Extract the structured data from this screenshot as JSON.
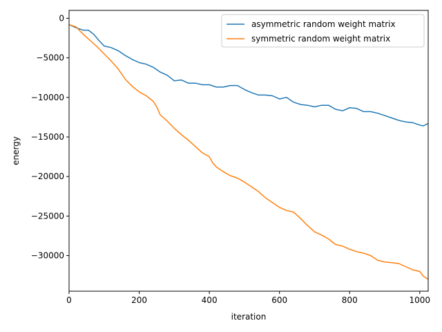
{
  "chart_data": {
    "type": "line",
    "title": "",
    "xlabel": "iteration",
    "ylabel": "energy",
    "xlim": [
      0,
      1024
    ],
    "ylim": [
      -34500,
      1000
    ],
    "x_ticks": [
      0,
      200,
      400,
      600,
      800,
      1000
    ],
    "x_tick_labels": [
      "0",
      "200",
      "400",
      "600",
      "800",
      "1000"
    ],
    "y_ticks": [
      0,
      -5000,
      -10000,
      -15000,
      -20000,
      -25000,
      -30000
    ],
    "y_tick_labels": [
      "0",
      "−5000",
      "−10000",
      "−15000",
      "−20000",
      "−25000",
      "−30000"
    ],
    "grid": false,
    "legend_position": "upper right",
    "series": [
      {
        "name": "asymmetric random weight matrix",
        "color": "#1f77b4",
        "points": [
          [
            0,
            -800
          ],
          [
            20,
            -1200
          ],
          [
            40,
            -1500
          ],
          [
            55,
            -1500
          ],
          [
            70,
            -2000
          ],
          [
            85,
            -2800
          ],
          [
            100,
            -3500
          ],
          [
            120,
            -3700
          ],
          [
            140,
            -4100
          ],
          [
            160,
            -4700
          ],
          [
            180,
            -5200
          ],
          [
            200,
            -5600
          ],
          [
            220,
            -5800
          ],
          [
            240,
            -6200
          ],
          [
            260,
            -6800
          ],
          [
            280,
            -7200
          ],
          [
            300,
            -7900
          ],
          [
            320,
            -7800
          ],
          [
            340,
            -8200
          ],
          [
            360,
            -8200
          ],
          [
            380,
            -8400
          ],
          [
            400,
            -8400
          ],
          [
            420,
            -8700
          ],
          [
            440,
            -8700
          ],
          [
            460,
            -8500
          ],
          [
            480,
            -8500
          ],
          [
            500,
            -9000
          ],
          [
            520,
            -9400
          ],
          [
            540,
            -9700
          ],
          [
            560,
            -9700
          ],
          [
            580,
            -9800
          ],
          [
            600,
            -10200
          ],
          [
            620,
            -10000
          ],
          [
            640,
            -10600
          ],
          [
            660,
            -10900
          ],
          [
            680,
            -11000
          ],
          [
            700,
            -11200
          ],
          [
            720,
            -11000
          ],
          [
            740,
            -11000
          ],
          [
            760,
            -11500
          ],
          [
            780,
            -11700
          ],
          [
            800,
            -11300
          ],
          [
            820,
            -11400
          ],
          [
            840,
            -11800
          ],
          [
            860,
            -11800
          ],
          [
            880,
            -12000
          ],
          [
            900,
            -12300
          ],
          [
            920,
            -12600
          ],
          [
            940,
            -12900
          ],
          [
            960,
            -13100
          ],
          [
            980,
            -13200
          ],
          [
            1000,
            -13500
          ],
          [
            1010,
            -13600
          ],
          [
            1024,
            -13300
          ]
        ]
      },
      {
        "name": "symmetric random weight matrix",
        "color": "#ff7f0e",
        "points": [
          [
            0,
            -800
          ],
          [
            20,
            -1100
          ],
          [
            40,
            -2000
          ],
          [
            60,
            -2800
          ],
          [
            80,
            -3600
          ],
          [
            100,
            -4500
          ],
          [
            120,
            -5400
          ],
          [
            140,
            -6400
          ],
          [
            160,
            -7700
          ],
          [
            180,
            -8600
          ],
          [
            200,
            -9300
          ],
          [
            220,
            -9800
          ],
          [
            240,
            -10500
          ],
          [
            250,
            -11200
          ],
          [
            260,
            -12200
          ],
          [
            280,
            -13000
          ],
          [
            300,
            -13900
          ],
          [
            320,
            -14700
          ],
          [
            340,
            -15400
          ],
          [
            360,
            -16200
          ],
          [
            380,
            -17000
          ],
          [
            400,
            -17500
          ],
          [
            410,
            -18300
          ],
          [
            420,
            -18800
          ],
          [
            440,
            -19400
          ],
          [
            460,
            -19900
          ],
          [
            480,
            -20200
          ],
          [
            500,
            -20700
          ],
          [
            520,
            -21300
          ],
          [
            540,
            -21900
          ],
          [
            560,
            -22700
          ],
          [
            580,
            -23300
          ],
          [
            600,
            -23900
          ],
          [
            620,
            -24300
          ],
          [
            640,
            -24500
          ],
          [
            660,
            -25300
          ],
          [
            680,
            -26200
          ],
          [
            700,
            -27000
          ],
          [
            720,
            -27400
          ],
          [
            740,
            -27900
          ],
          [
            760,
            -28600
          ],
          [
            780,
            -28800
          ],
          [
            800,
            -29200
          ],
          [
            820,
            -29500
          ],
          [
            840,
            -29700
          ],
          [
            860,
            -30000
          ],
          [
            880,
            -30600
          ],
          [
            900,
            -30800
          ],
          [
            920,
            -30900
          ],
          [
            940,
            -31000
          ],
          [
            960,
            -31400
          ],
          [
            980,
            -31800
          ],
          [
            1000,
            -32000
          ],
          [
            1010,
            -32600
          ],
          [
            1024,
            -33000
          ]
        ]
      }
    ]
  }
}
